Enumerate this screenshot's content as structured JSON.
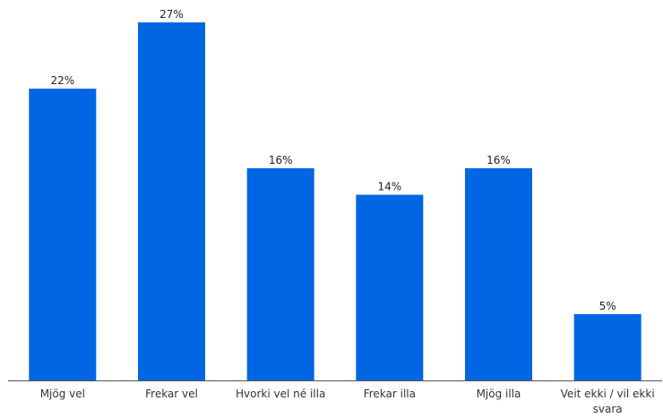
{
  "colors": {
    "bar": "#0066e3",
    "axis": "#555555"
  },
  "chart_data": {
    "type": "bar",
    "title": "",
    "xlabel": "",
    "ylabel": "",
    "unit": "%",
    "ylim": [
      0,
      27
    ],
    "grid": false,
    "categories": [
      "Mjög vel",
      "Frekar vel",
      "Hvorki vel né illa",
      "Frekar illa",
      "Mjög illa",
      "Veit ekki / vil ekki svara"
    ],
    "category_lines": [
      [
        "Mjög vel"
      ],
      [
        "Frekar vel"
      ],
      [
        "Hvorki vel né illa"
      ],
      [
        "Frekar illa"
      ],
      [
        "Mjög illa"
      ],
      [
        "Veit ekki / vil ekki",
        "svara"
      ]
    ],
    "values": [
      22,
      27,
      16,
      14,
      16,
      5
    ],
    "value_labels": [
      "22%",
      "27%",
      "16%",
      "14%",
      "16%",
      "5%"
    ]
  }
}
